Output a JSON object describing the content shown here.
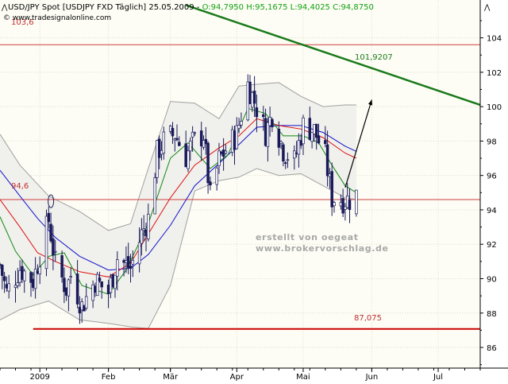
{
  "header": {
    "symbol": "USD/JPY Spot [USDJPY FXD  Täglich] 25.05.2009 - ",
    "ohlc": "O:94,7950 H:95,1675 L:94,4025 C:94,8750",
    "copyright": "© www.tradesignalonline.com",
    "icon": "scroll-up-icon"
  },
  "colors": {
    "background": "#ffffff",
    "plot_background": "#fdfdf5",
    "band_fill": "#f0f0ec",
    "band_line": "#a0a0a0",
    "candle": "#1a1a5a",
    "grid": "#dcdccc",
    "horizontal_line": "#d04040",
    "support_line": "#cc0000",
    "trend_line": "#1a7a1a",
    "ma_red": "#dd1111",
    "ma_blue": "#1111cc",
    "ma_green": "#118811",
    "watermark": "#a8a8a8",
    "arrow": "#000000"
  },
  "watermark": {
    "line1": "erstellt von oegeat",
    "line2": "www.brokervorschlag.de"
  },
  "annotations": {
    "level_top": "103,6",
    "level_mid": "94,6",
    "level_bottom": "87,075",
    "trend_label": "101,9207"
  },
  "chart_data": {
    "type": "candlestick",
    "title": "USD/JPY Spot [USDJPY FXD  Täglich] 25.05.2009",
    "ylim": [
      84.8,
      106.2
    ],
    "y_ticks": [
      86,
      88,
      90,
      92,
      94,
      96,
      98,
      100,
      102,
      104
    ],
    "y_tick_labels": [
      "86",
      "88",
      "90",
      "92",
      "94",
      "96",
      "98",
      "100",
      "102",
      "104"
    ],
    "x_axis": {
      "start": "2008-12-15",
      "end": "2009-07-20",
      "labels": [
        {
          "date": "2009-01-02",
          "text": "2009"
        },
        {
          "date": "2009-02-02",
          "text": "Feb"
        },
        {
          "date": "2009-03-02",
          "text": "Mär"
        },
        {
          "date": "2009-04-01",
          "text": "Apr"
        },
        {
          "date": "2009-05-01",
          "text": "Mai"
        },
        {
          "date": "2009-06-01",
          "text": "Jun"
        },
        {
          "date": "2009-07-01",
          "text": "Jul"
        }
      ]
    },
    "horizontal_lines": [
      {
        "y": 103.6,
        "label": "103,6"
      },
      {
        "y": 94.6,
        "label": "94,6"
      }
    ],
    "support_line": {
      "y": 87.075,
      "x_from": "2008-12-30",
      "label": "87,075"
    },
    "trend_line": {
      "from": {
        "date": "2009-03-09",
        "y": 105.9
      },
      "to": {
        "date": "2009-07-20",
        "y": 100.1
      },
      "label": "101,9207"
    },
    "arrow": {
      "from": {
        "date": "2009-05-20",
        "y": 95.3
      },
      "to": {
        "date": "2009-06-01",
        "y": 100.4
      }
    },
    "close_path": [
      [
        "2008-12-15",
        90.8
      ],
      [
        "2008-12-18",
        89.2
      ],
      [
        "2008-12-24",
        90.6
      ],
      [
        "2008-12-30",
        89.9
      ],
      [
        "2009-01-06",
        93.4
      ],
      [
        "2009-01-09",
        90.9
      ],
      [
        "2009-01-14",
        89.4
      ],
      [
        "2009-01-16",
        90.2
      ],
      [
        "2009-01-21",
        88.4
      ],
      [
        "2009-01-27",
        89.9
      ],
      [
        "2009-02-02",
        89.2
      ],
      [
        "2009-02-06",
        91.2
      ],
      [
        "2009-02-12",
        90.6
      ],
      [
        "2009-02-17",
        92.6
      ],
      [
        "2009-02-20",
        93.5
      ],
      [
        "2009-02-24",
        97.3
      ],
      [
        "2009-02-27",
        98.0
      ],
      [
        "2009-03-04",
        98.4
      ],
      [
        "2009-03-09",
        97.1
      ],
      [
        "2009-03-12",
        97.9
      ],
      [
        "2009-03-17",
        98.4
      ],
      [
        "2009-03-20",
        94.7
      ],
      [
        "2009-03-24",
        96.9
      ],
      [
        "2009-03-27",
        97.5
      ],
      [
        "2009-04-01",
        98.4
      ],
      [
        "2009-04-06",
        101.3
      ],
      [
        "2009-04-09",
        100.3
      ],
      [
        "2009-04-14",
        98.5
      ],
      [
        "2009-04-17",
        99.6
      ],
      [
        "2009-04-22",
        97.5
      ],
      [
        "2009-04-27",
        96.8
      ],
      [
        "2009-05-01",
        98.9
      ],
      [
        "2009-05-06",
        98.6
      ],
      [
        "2009-05-11",
        97.1
      ],
      [
        "2009-05-14",
        94.7
      ],
      [
        "2009-05-19",
        94.6
      ],
      [
        "2009-05-22",
        94.6
      ],
      [
        "2009-05-25",
        94.9
      ]
    ],
    "ma_red": [
      [
        "2008-12-15",
        94.6
      ],
      [
        "2008-12-24",
        93.0
      ],
      [
        "2009-01-01",
        91.5
      ],
      [
        "2009-01-09",
        91.0
      ],
      [
        "2009-01-20",
        90.4
      ],
      [
        "2009-02-02",
        90.1
      ],
      [
        "2009-02-12",
        90.9
      ],
      [
        "2009-02-20",
        92.6
      ],
      [
        "2009-03-02",
        94.7
      ],
      [
        "2009-03-13",
        96.6
      ],
      [
        "2009-03-24",
        97.6
      ],
      [
        "2009-04-02",
        98.3
      ],
      [
        "2009-04-10",
        99.3
      ],
      [
        "2009-04-20",
        98.9
      ],
      [
        "2009-04-30",
        98.7
      ],
      [
        "2009-05-10",
        98.2
      ],
      [
        "2009-05-20",
        97.3
      ],
      [
        "2009-05-25",
        97.0
      ]
    ],
    "ma_blue": [
      [
        "2008-12-15",
        96.3
      ],
      [
        "2008-12-24",
        94.8
      ],
      [
        "2009-01-01",
        93.5
      ],
      [
        "2009-01-09",
        92.4
      ],
      [
        "2009-01-20",
        91.3
      ],
      [
        "2009-02-02",
        90.5
      ],
      [
        "2009-02-12",
        90.6
      ],
      [
        "2009-02-20",
        91.4
      ],
      [
        "2009-03-02",
        93.1
      ],
      [
        "2009-03-13",
        95.4
      ],
      [
        "2009-03-24",
        96.7
      ],
      [
        "2009-04-02",
        97.8
      ],
      [
        "2009-04-10",
        98.8
      ],
      [
        "2009-04-20",
        98.9
      ],
      [
        "2009-04-30",
        98.9
      ],
      [
        "2009-05-10",
        98.5
      ],
      [
        "2009-05-20",
        97.7
      ],
      [
        "2009-05-25",
        97.4
      ]
    ],
    "ma_green": [
      [
        "2008-12-15",
        93.6
      ],
      [
        "2008-12-22",
        91.6
      ],
      [
        "2008-12-30",
        90.2
      ],
      [
        "2009-01-06",
        91.3
      ],
      [
        "2009-01-13",
        91.5
      ],
      [
        "2009-01-21",
        89.6
      ],
      [
        "2009-02-02",
        89.1
      ],
      [
        "2009-02-10",
        90.5
      ],
      [
        "2009-02-20",
        93.2
      ],
      [
        "2009-03-02",
        97.0
      ],
      [
        "2009-03-10",
        97.9
      ],
      [
        "2009-03-20",
        96.4
      ],
      [
        "2009-03-28",
        97.2
      ],
      [
        "2009-04-06",
        99.9
      ],
      [
        "2009-04-14",
        99.6
      ],
      [
        "2009-04-22",
        98.3
      ],
      [
        "2009-05-01",
        98.3
      ],
      [
        "2009-05-08",
        97.9
      ],
      [
        "2009-05-14",
        96.6
      ],
      [
        "2009-05-20",
        95.4
      ],
      [
        "2009-05-25",
        95.0
      ]
    ],
    "band_upper": [
      [
        "2008-12-15",
        98.4
      ],
      [
        "2008-12-24",
        96.6
      ],
      [
        "2009-01-06",
        94.8
      ],
      [
        "2009-01-20",
        93.9
      ],
      [
        "2009-02-02",
        92.8
      ],
      [
        "2009-02-12",
        93.2
      ],
      [
        "2009-02-20",
        96.4
      ],
      [
        "2009-03-02",
        100.3
      ],
      [
        "2009-03-13",
        100.2
      ],
      [
        "2009-03-24",
        99.3
      ],
      [
        "2009-04-02",
        101.2
      ],
      [
        "2009-04-10",
        101.3
      ],
      [
        "2009-04-20",
        101.4
      ],
      [
        "2009-04-30",
        100.6
      ],
      [
        "2009-05-10",
        100.0
      ],
      [
        "2009-05-20",
        100.1
      ],
      [
        "2009-05-25",
        100.1
      ]
    ],
    "band_lower": [
      [
        "2008-12-15",
        87.6
      ],
      [
        "2008-12-24",
        88.2
      ],
      [
        "2009-01-06",
        88.7
      ],
      [
        "2009-01-20",
        87.6
      ],
      [
        "2009-02-02",
        87.4
      ],
      [
        "2009-02-12",
        87.2
      ],
      [
        "2009-02-20",
        87.1
      ],
      [
        "2009-03-02",
        89.6
      ],
      [
        "2009-03-13",
        95.1
      ],
      [
        "2009-03-24",
        95.7
      ],
      [
        "2009-04-02",
        95.9
      ],
      [
        "2009-04-10",
        96.4
      ],
      [
        "2009-04-20",
        96.0
      ],
      [
        "2009-04-30",
        96.1
      ],
      [
        "2009-05-10",
        95.4
      ],
      [
        "2009-05-20",
        94.7
      ],
      [
        "2009-05-25",
        94.6
      ]
    ]
  }
}
